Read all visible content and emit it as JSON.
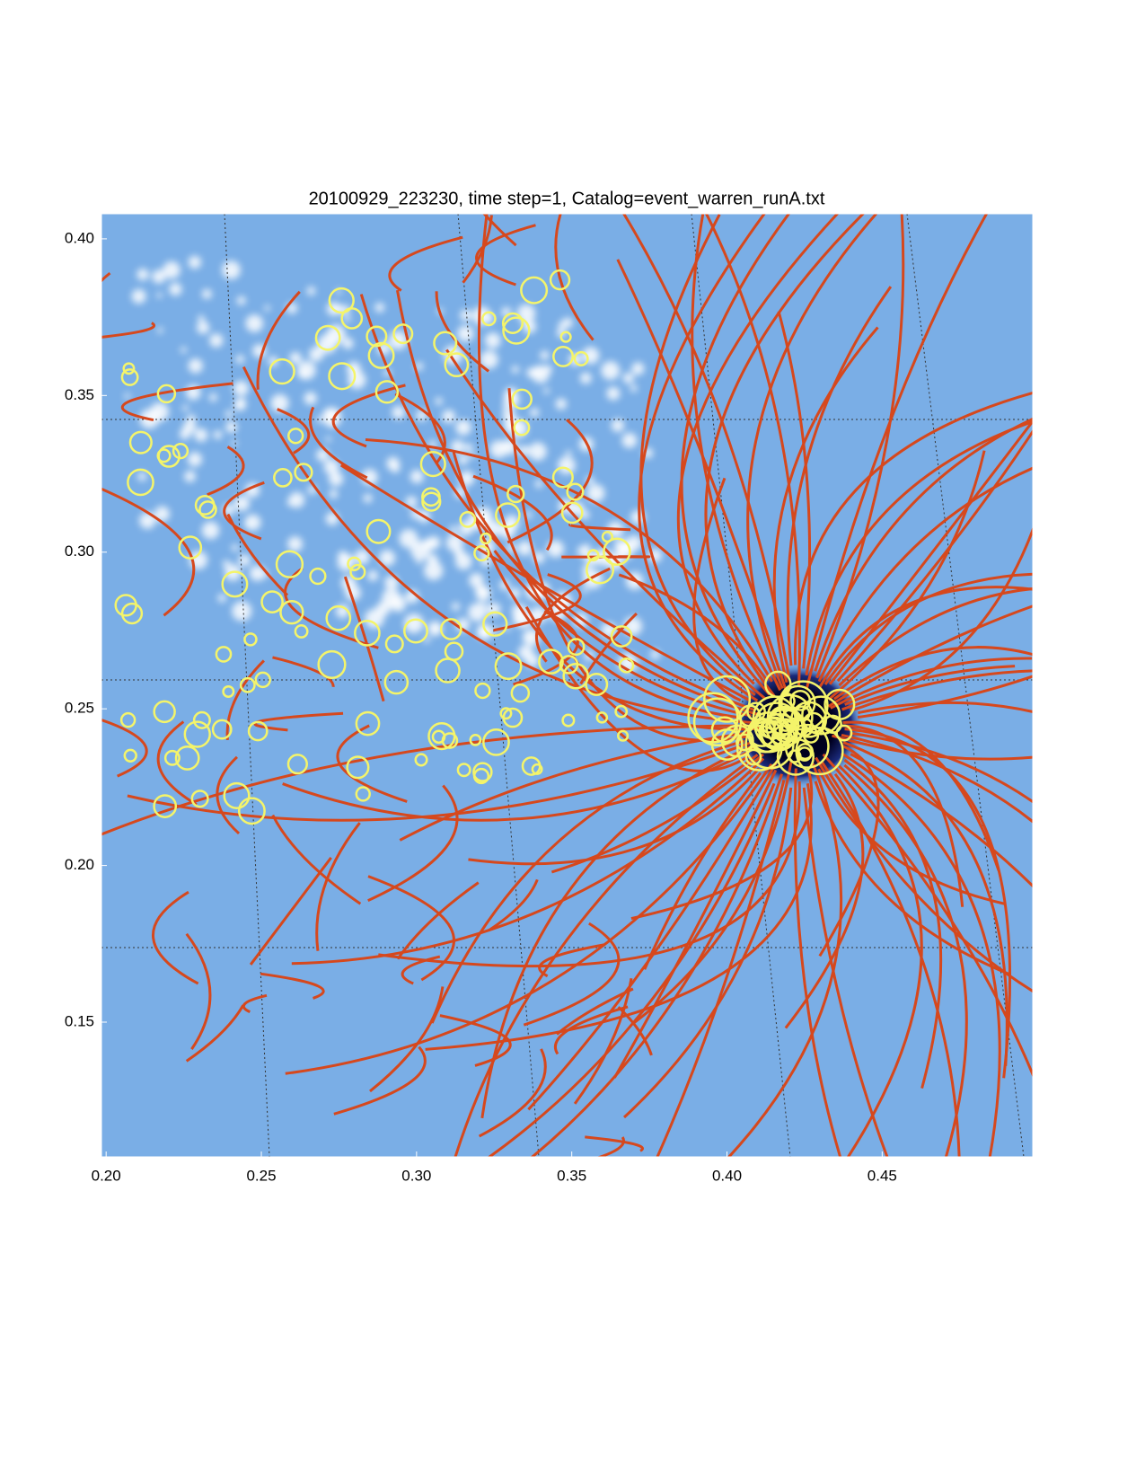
{
  "chart_data": {
    "type": "image",
    "title": "20100929_223230, time step=1, Catalog=event_warren_runA.txt",
    "xlim": [
      0.1985,
      0.4985
    ],
    "ylim": [
      0.107,
      0.408
    ],
    "xticks": [
      {
        "value": 0.2,
        "label": "0.20"
      },
      {
        "value": 0.25,
        "label": "0.25"
      },
      {
        "value": 0.3,
        "label": "0.30"
      },
      {
        "value": 0.35,
        "label": "0.35"
      },
      {
        "value": 0.4,
        "label": "0.40"
      },
      {
        "value": 0.45,
        "label": "0.45"
      }
    ],
    "yticks": [
      {
        "value": 0.15,
        "label": "0.15"
      },
      {
        "value": 0.2,
        "label": "0.20"
      },
      {
        "value": 0.25,
        "label": "0.25"
      },
      {
        "value": 0.3,
        "label": "0.30"
      },
      {
        "value": 0.35,
        "label": "0.35"
      },
      {
        "value": 0.4,
        "label": "0.40"
      }
    ]
  }
}
